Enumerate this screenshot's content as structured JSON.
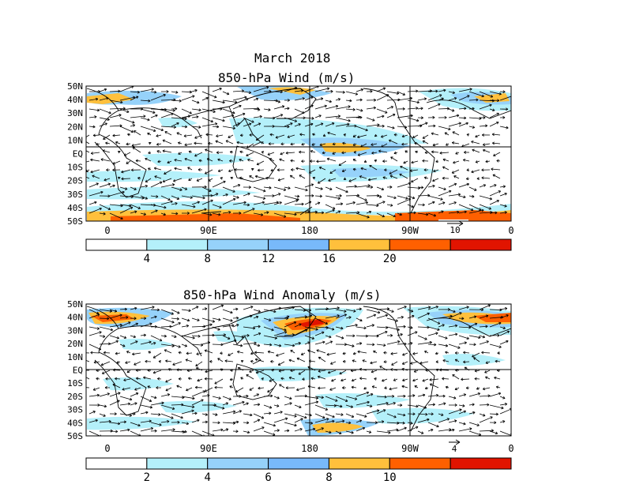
{
  "main_title": "March 2018",
  "panels": [
    {
      "title": "850-hPa Wind (m/s)",
      "lat_labels": [
        "50N",
        "40N",
        "30N",
        "20N",
        "10N",
        "EQ",
        "10S",
        "20S",
        "30S",
        "40S",
        "50S"
      ],
      "lon_labels": [
        "0",
        "90E",
        "180",
        "90W",
        "0"
      ],
      "ref_vector_label": "10",
      "colorbar_labels": [
        "4",
        "8",
        "12",
        "16",
        "20"
      ],
      "colorbar_colors": [
        "#ffffff",
        "#b4f0fa",
        "#96d2fa",
        "#78b9fa",
        "#ffc03c",
        "#ff6000",
        "#e11400"
      ]
    },
    {
      "title": "850-hPa Wind Anomaly (m/s)",
      "lat_labels": [
        "50N",
        "40N",
        "30N",
        "20N",
        "10N",
        "EQ",
        "10S",
        "20S",
        "30S",
        "40S",
        "50S"
      ],
      "lon_labels": [
        "0",
        "90E",
        "180",
        "90W",
        "0"
      ],
      "ref_vector_label": "4",
      "colorbar_labels": [
        "2",
        "4",
        "6",
        "8",
        "10"
      ],
      "colorbar_colors": [
        "#ffffff",
        "#b4f0fa",
        "#96d2fa",
        "#78b9fa",
        "#ffc03c",
        "#ff6000",
        "#e11400"
      ]
    }
  ]
}
